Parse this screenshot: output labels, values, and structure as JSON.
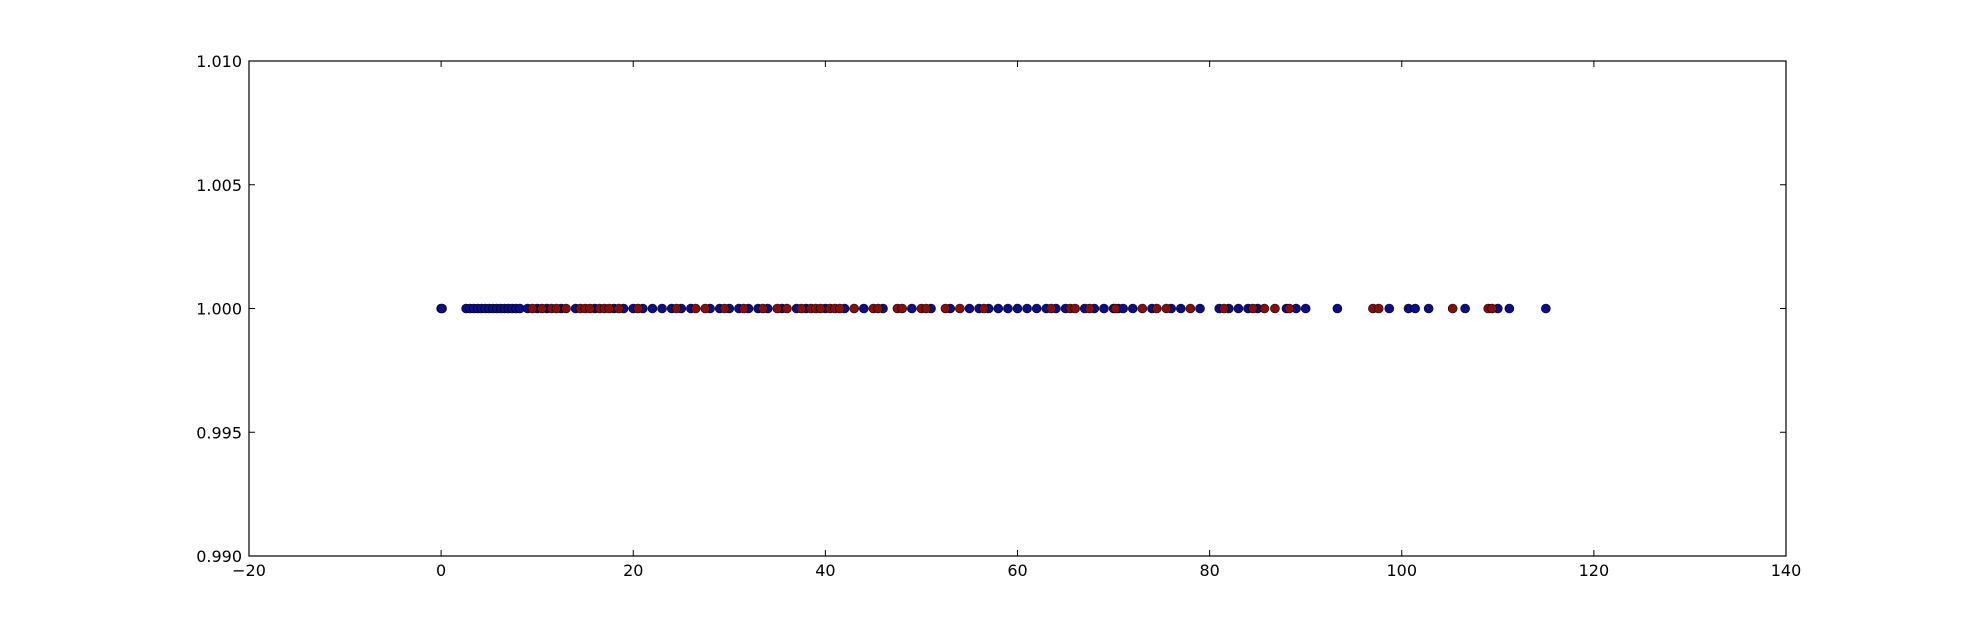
{
  "chart_data": {
    "type": "scatter",
    "title": "",
    "xlabel": "",
    "ylabel": "",
    "xlim": [
      -20,
      140
    ],
    "ylim": [
      0.99,
      1.01
    ],
    "grid": false,
    "x_ticks": [
      -20,
      0,
      20,
      40,
      60,
      80,
      100,
      120,
      140
    ],
    "x_tick_labels": [
      "−20",
      "0",
      "20",
      "40",
      "60",
      "80",
      "100",
      "120",
      "140"
    ],
    "y_ticks": [
      0.99,
      0.995,
      1.0,
      1.005,
      1.01
    ],
    "y_tick_labels": [
      "0.990",
      "0.995",
      "1.000",
      "1.005",
      "1.010"
    ],
    "colors": {
      "series_a": "#0c0c8c",
      "series_b": "#8c0c0c",
      "axes": "#000000"
    },
    "series": [
      {
        "color": "#0c0c8c",
        "y": 1.0,
        "x": [
          0,
          0.1,
          2.6,
          3,
          3.4,
          3.8,
          4.2,
          4.6,
          5,
          5.4,
          5.8,
          6.2,
          6.6,
          7,
          7.4,
          7.8,
          8.2,
          9,
          10,
          11,
          12.5,
          14,
          16,
          18,
          19,
          20,
          21,
          22,
          23,
          24,
          25,
          26,
          28,
          29,
          30,
          31,
          32,
          33,
          34,
          35.5,
          37,
          38,
          40,
          42,
          44,
          46,
          49,
          51,
          53,
          55,
          56,
          57,
          58,
          59,
          60,
          61,
          62,
          63,
          64,
          65,
          67,
          68,
          69,
          70,
          70.5,
          71,
          72,
          74,
          76,
          77,
          79,
          81,
          82,
          83,
          84,
          85,
          88,
          89,
          90,
          93.3,
          98.7,
          100.7,
          101.4,
          102.8,
          106.6,
          110,
          111.2,
          115
        ]
      },
      {
        "color": "#8c0c0c",
        "y": 1.0,
        "x": [
          9.5,
          10.5,
          11.5,
          12,
          13,
          14.5,
          15,
          15.5,
          16.5,
          17,
          17.5,
          18.5,
          20.5,
          24.5,
          26.5,
          27.5,
          29.5,
          31.5,
          33.5,
          35,
          36,
          37.5,
          38.5,
          39,
          39.5,
          40.5,
          41,
          41.5,
          43,
          45,
          45.5,
          47.5,
          48,
          50,
          50.5,
          52.5,
          54,
          56.5,
          63.5,
          65.5,
          66,
          67.5,
          70.2,
          73,
          74.5,
          75.5,
          78,
          81.5,
          84.5,
          85.7,
          86.8,
          88.3,
          97,
          97.6,
          105.3,
          109,
          109.4
        ]
      }
    ]
  }
}
